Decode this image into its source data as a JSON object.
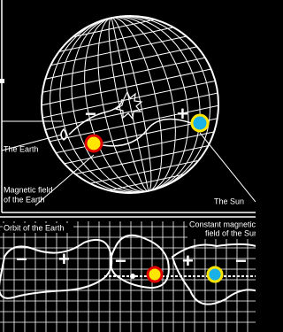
{
  "labels": {
    "earth": "The Earth",
    "magnetic_field": [
      "Magnetic field",
      "of the Earth"
    ],
    "sun": "The Sun",
    "orbit": "Orbit of the Earth",
    "sun_field": [
      "Constant magnetic",
      "field of the Sun"
    ]
  },
  "sphere_signs": [
    "−",
    "+"
  ],
  "orbit_signs": [
    "−",
    "+",
    "−",
    "+",
    "−"
  ]
}
